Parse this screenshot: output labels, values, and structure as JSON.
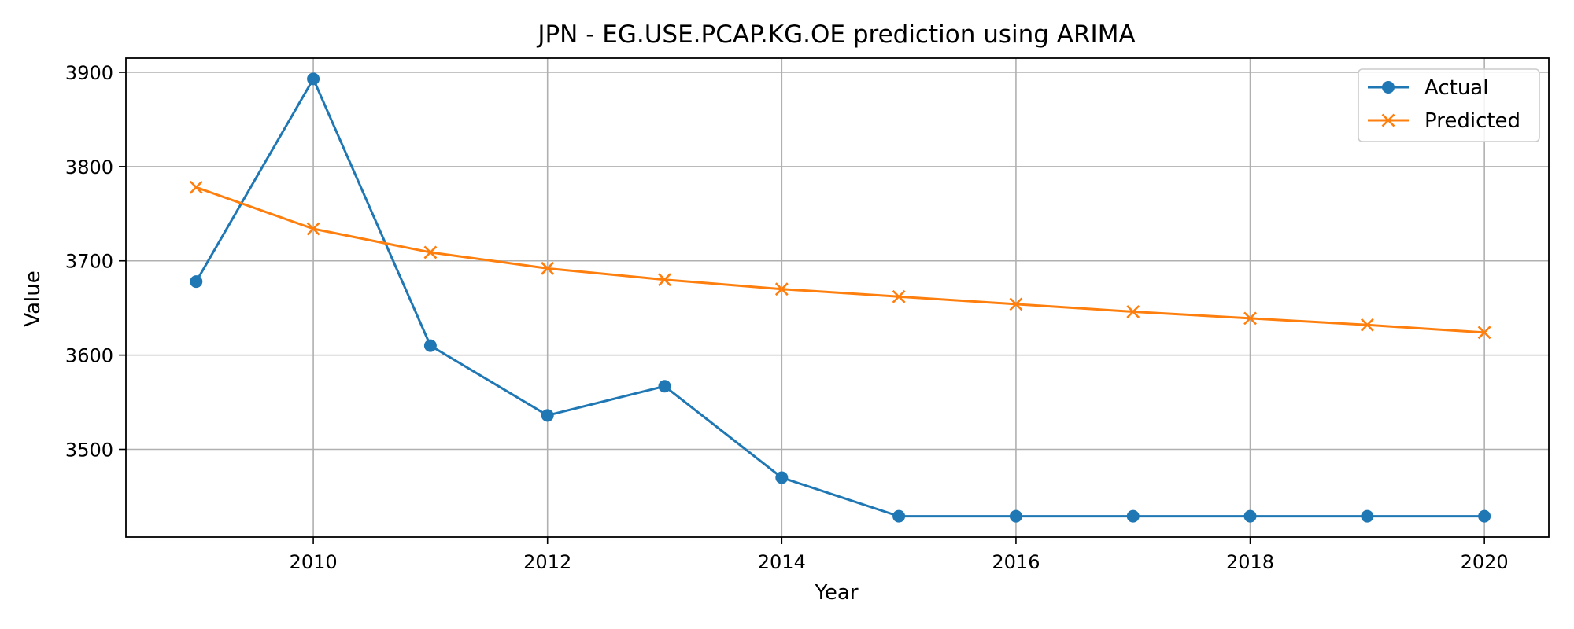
{
  "chart_data": {
    "type": "line",
    "title": "JPN - EG.USE.PCAP.KG.OE prediction using ARIMA",
    "xlabel": "Year",
    "ylabel": "Value",
    "xlim": [
      2008.4,
      2020.55
    ],
    "ylim": [
      3407,
      3915
    ],
    "x_ticks": [
      2010,
      2012,
      2014,
      2016,
      2018,
      2020
    ],
    "y_ticks": [
      3500,
      3600,
      3700,
      3800,
      3900
    ],
    "grid": true,
    "legend_position": "top-right",
    "x": [
      2009,
      2010,
      2011,
      2012,
      2013,
      2014,
      2015,
      2016,
      2017,
      2018,
      2019,
      2020
    ],
    "series": [
      {
        "name": "Actual",
        "marker": "circle",
        "color": "#1f77b4",
        "values": [
          3678,
          3893,
          3610,
          3536,
          3567,
          3470,
          3429,
          3429,
          3429,
          3429,
          3429,
          3429
        ]
      },
      {
        "name": "Predicted",
        "marker": "x",
        "color": "#ff7f0e",
        "values": [
          3778,
          3734,
          3709,
          3692,
          3680,
          3670,
          3662,
          3654,
          3646,
          3639,
          3632,
          3624
        ]
      }
    ]
  }
}
